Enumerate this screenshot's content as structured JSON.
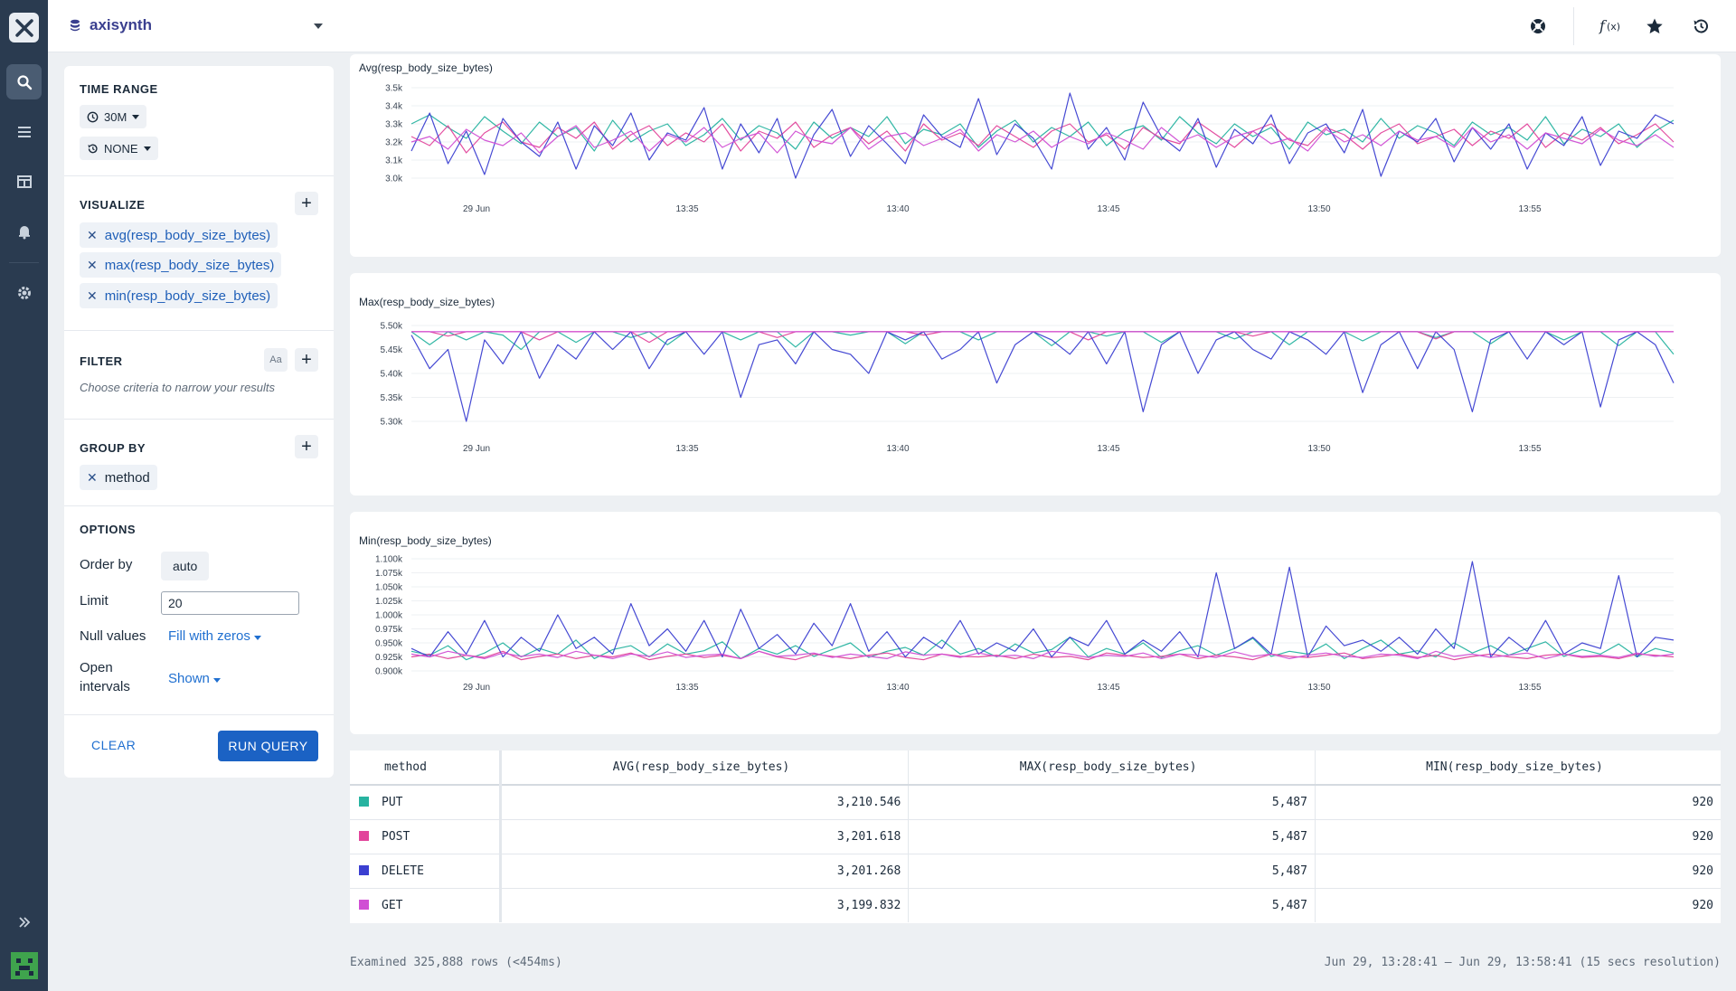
{
  "app": {
    "dataset_name": "axisynth"
  },
  "nav": {
    "items": [
      "search",
      "list",
      "dashboards",
      "alerts",
      "settings"
    ]
  },
  "topbar": {
    "icons": [
      "help-icon",
      "function-icon",
      "star-icon",
      "history-icon"
    ]
  },
  "query": {
    "time_range_title": "TIME RANGE",
    "time_range": "30M",
    "compare": "NONE",
    "visualize_title": "VISUALIZE",
    "visualize": [
      "avg(resp_body_size_bytes)",
      "max(resp_body_size_bytes)",
      "min(resp_body_size_bytes)"
    ],
    "filter_title": "FILTER",
    "filter_case_label": "Aa",
    "filter_hint": "Choose criteria to narrow your results",
    "group_by_title": "GROUP BY",
    "group_by": [
      "method"
    ],
    "options_title": "OPTIONS",
    "order_by_label": "Order by",
    "order_by_value": "auto",
    "limit_label": "Limit",
    "limit_value": "20",
    "null_values_label": "Null values",
    "null_values_value": "Fill with zeros",
    "open_intervals_label_1": "Open",
    "open_intervals_label_2": "intervals",
    "open_intervals_value": "Shown",
    "clear_label": "CLEAR",
    "run_label": "RUN QUERY"
  },
  "colors": {
    "PUT": "#27b3a0",
    "POST": "#e2459b",
    "DELETE": "#3b3fd1",
    "GET": "#d04fd4"
  },
  "chart_data": [
    {
      "type": "line",
      "title": "Avg(resp_body_size_bytes)",
      "x_ticks": [
        "29 Jun",
        "13:35",
        "13:40",
        "13:45",
        "13:50",
        "13:55"
      ],
      "y_ticks": [
        "3.5k",
        "3.4k",
        "3.3k",
        "3.2k",
        "3.1k",
        "3.0k"
      ],
      "ylim": [
        3000,
        3500
      ],
      "series": [
        {
          "name": "PUT",
          "values": [
            3300,
            3350,
            3280,
            3220,
            3340,
            3260,
            3190,
            3310,
            3230,
            3280,
            3150,
            3320,
            3200,
            3260,
            3300,
            3180,
            3240,
            3330,
            3210,
            3290,
            3250,
            3160,
            3310,
            3220,
            3280,
            3230,
            3340,
            3190,
            3270,
            3240,
            3300,
            3170,
            3260,
            3320,
            3200,
            3280,
            3230,
            3310,
            3180,
            3260,
            3290,
            3210,
            3340,
            3250,
            3190,
            3300,
            3230,
            3280,
            3160,
            3310,
            3240,
            3270,
            3200,
            3330,
            3220,
            3290,
            3250,
            3180,
            3310,
            3240,
            3280,
            3210,
            3340,
            3190,
            3270,
            3230,
            3300,
            3170,
            3260,
            3320
          ]
        },
        {
          "name": "POST",
          "values": [
            3230,
            3180,
            3290,
            3140,
            3250,
            3310,
            3200,
            3170,
            3280,
            3220,
            3310,
            3160,
            3240,
            3290,
            3180,
            3250,
            3200,
            3300,
            3150,
            3260,
            3220,
            3310,
            3170,
            3240,
            3280,
            3190,
            3260,
            3150,
            3300,
            3210,
            3250,
            3180,
            3290,
            3230,
            3170,
            3260,
            3300,
            3200,
            3240,
            3160,
            3280,
            3220,
            3190,
            3310,
            3240,
            3170,
            3260,
            3300,
            3210,
            3180,
            3280,
            3240,
            3160,
            3250,
            3300,
            3190,
            3230,
            3270,
            3180,
            3260,
            3220,
            3300,
            3170,
            3250,
            3210,
            3280,
            3190,
            3240,
            3300,
            3200
          ]
        },
        {
          "name": "DELETE",
          "values": [
            3150,
            3360,
            3080,
            3260,
            3020,
            3330,
            3200,
            3120,
            3310,
            3050,
            3290,
            3180,
            3360,
            3100,
            3250,
            3210,
            3390,
            3050,
            3300,
            3140,
            3330,
            3000,
            3240,
            3380,
            3120,
            3290,
            3190,
            3080,
            3350,
            3230,
            3170,
            3440,
            3130,
            3300,
            3220,
            3050,
            3470,
            3160,
            3280,
            3100,
            3420,
            3230,
            3150,
            3330,
            3060,
            3270,
            3190,
            3350,
            3080,
            3250,
            3300,
            3140,
            3380,
            3010,
            3260,
            3200,
            3330,
            3090,
            3280,
            3160,
            3300,
            3050,
            3250,
            3180,
            3340,
            3070,
            3260,
            3220,
            3350,
            3300
          ]
        },
        {
          "name": "GET",
          "values": [
            3200,
            3230,
            3160,
            3270,
            3210,
            3180,
            3250,
            3140,
            3230,
            3290,
            3170,
            3210,
            3260,
            3150,
            3240,
            3200,
            3280,
            3170,
            3220,
            3250,
            3140,
            3260,
            3210,
            3190,
            3280,
            3160,
            3230,
            3250,
            3180,
            3220,
            3270,
            3150,
            3240,
            3200,
            3260,
            3170,
            3230,
            3190,
            3250,
            3210,
            3160,
            3280,
            3200,
            3240,
            3170,
            3230,
            3260,
            3190,
            3220,
            3150,
            3270,
            3200,
            3240,
            3180,
            3260,
            3210,
            3230,
            3170,
            3280,
            3200,
            3240,
            3160,
            3250,
            3220,
            3190,
            3270,
            3210,
            3180,
            3240,
            3170
          ]
        }
      ]
    },
    {
      "type": "line",
      "title": "Max(resp_body_size_bytes)",
      "x_ticks": [
        "29 Jun",
        "13:35",
        "13:40",
        "13:45",
        "13:50",
        "13:55"
      ],
      "y_ticks": [
        "5.50k",
        "5.45k",
        "5.40k",
        "5.35k",
        "5.30k"
      ],
      "ylim": [
        5300,
        5500
      ],
      "series": [
        {
          "name": "PUT",
          "values": [
            5487,
            5460,
            5487,
            5470,
            5487,
            5480,
            5450,
            5487,
            5487,
            5465,
            5487,
            5487,
            5475,
            5487,
            5460,
            5487,
            5487,
            5487,
            5470,
            5487,
            5487,
            5455,
            5487,
            5487,
            5480,
            5487,
            5487,
            5462,
            5487,
            5487,
            5487,
            5470,
            5487,
            5487,
            5487,
            5458,
            5487,
            5487,
            5478,
            5487,
            5487,
            5465,
            5487,
            5487,
            5487,
            5472,
            5487,
            5487,
            5460,
            5487,
            5487,
            5487,
            5468,
            5487,
            5487,
            5487,
            5475,
            5487,
            5487,
            5462,
            5487,
            5487,
            5487,
            5470,
            5487,
            5487,
            5458,
            5487,
            5487,
            5440
          ]
        },
        {
          "name": "POST",
          "values": [
            5487,
            5487,
            5478,
            5487,
            5487,
            5487,
            5487,
            5470,
            5487,
            5487,
            5487,
            5487,
            5487,
            5465,
            5487,
            5487,
            5487,
            5487,
            5487,
            5487,
            5475,
            5487,
            5487,
            5487,
            5487,
            5487,
            5487,
            5487,
            5480,
            5487,
            5487,
            5487,
            5487,
            5487,
            5487,
            5487,
            5487,
            5470,
            5487,
            5487,
            5487,
            5487,
            5487,
            5487,
            5487,
            5487,
            5478,
            5487,
            5487,
            5487,
            5487,
            5487,
            5487,
            5487,
            5487,
            5487,
            5472,
            5487,
            5487,
            5487,
            5487,
            5487,
            5487,
            5487,
            5487,
            5487,
            5487,
            5487,
            5487,
            5487
          ]
        },
        {
          "name": "DELETE",
          "values": [
            5480,
            5410,
            5450,
            5300,
            5470,
            5420,
            5487,
            5390,
            5460,
            5430,
            5487,
            5450,
            5487,
            5410,
            5470,
            5487,
            5440,
            5487,
            5350,
            5460,
            5470,
            5420,
            5487,
            5450,
            5440,
            5400,
            5487,
            5470,
            5487,
            5430,
            5450,
            5487,
            5380,
            5460,
            5487,
            5470,
            5440,
            5487,
            5420,
            5487,
            5320,
            5460,
            5487,
            5400,
            5470,
            5487,
            5450,
            5430,
            5487,
            5470,
            5440,
            5487,
            5360,
            5460,
            5487,
            5410,
            5487,
            5450,
            5320,
            5470,
            5487,
            5430,
            5487,
            5460,
            5487,
            5330,
            5470,
            5487,
            5460,
            5380
          ]
        },
        {
          "name": "GET",
          "values": [
            5487,
            5487,
            5487,
            5487,
            5487,
            5487,
            5487,
            5487,
            5487,
            5487,
            5487,
            5487,
            5487,
            5487,
            5487,
            5487,
            5487,
            5487,
            5487,
            5487,
            5487,
            5487,
            5487,
            5487,
            5487,
            5487,
            5487,
            5487,
            5487,
            5487,
            5487,
            5487,
            5487,
            5487,
            5487,
            5487,
            5487,
            5487,
            5487,
            5487,
            5487,
            5487,
            5487,
            5487,
            5487,
            5487,
            5487,
            5487,
            5487,
            5487,
            5487,
            5487,
            5487,
            5487,
            5487,
            5487,
            5487,
            5487,
            5487,
            5487,
            5487,
            5487,
            5487,
            5487,
            5487,
            5487,
            5487,
            5487,
            5487,
            5487
          ]
        }
      ]
    },
    {
      "type": "line",
      "title": "Min(resp_body_size_bytes)",
      "x_ticks": [
        "29 Jun",
        "13:35",
        "13:40",
        "13:45",
        "13:50",
        "13:55"
      ],
      "y_ticks": [
        "1.100k",
        "1.075k",
        "1.050k",
        "1.025k",
        "1.000k",
        "0.975k",
        "0.950k",
        "0.925k",
        "0.900k"
      ],
      "ylim": [
        900,
        1100
      ],
      "series": [
        {
          "name": "PUT",
          "values": [
            935,
            928,
            945,
            920,
            932,
            950,
            925,
            940,
            930,
            955,
            922,
            938,
            945,
            925,
            948,
            930,
            936,
            952,
            922,
            940,
            930,
            945,
            926,
            938,
            950,
            924,
            935,
            942,
            928,
            955,
            930,
            940,
            925,
            948,
            932,
            938,
            960,
            925,
            940,
            930,
            950,
            924,
            936,
            945,
            928,
            940,
            958,
            926,
            935,
            930,
            948,
            922,
            940,
            955,
            930,
            936,
            925,
            950,
            932,
            945,
            928,
            940,
            952,
            926,
            938,
            930,
            948,
            925,
            940,
            932
          ]
        },
        {
          "name": "POST",
          "values": [
            925,
            930,
            922,
            928,
            924,
            935,
            920,
            926,
            930,
            922,
            928,
            925,
            932,
            920,
            926,
            930,
            924,
            928,
            922,
            935,
            925,
            920,
            930,
            926,
            922,
            928,
            932,
            924,
            920,
            930,
            926,
            925,
            928,
            922,
            930,
            924,
            926,
            920,
            932,
            928,
            924,
            926,
            930,
            922,
            928,
            925,
            920,
            930,
            926,
            924,
            928,
            932,
            922,
            926,
            930,
            924,
            928,
            920,
            926,
            930,
            925,
            922,
            928,
            930,
            924,
            926,
            922,
            930,
            928,
            925
          ]
        },
        {
          "name": "DELETE",
          "values": [
            940,
            925,
            970,
            930,
            990,
            925,
            960,
            935,
            1000,
            940,
            960,
            930,
            1020,
            945,
            975,
            935,
            990,
            925,
            1010,
            940,
            965,
            930,
            985,
            945,
            1020,
            935,
            970,
            925,
            960,
            940,
            990,
            930,
            950,
            935,
            975,
            925,
            960,
            945,
            990,
            930,
            955,
            935,
            970,
            925,
            1075,
            940,
            960,
            930,
            1085,
            925,
            980,
            945,
            955,
            935,
            960,
            930,
            975,
            940,
            1095,
            925,
            960,
            935,
            990,
            930,
            950,
            940,
            1070,
            925,
            960,
            955
          ]
        },
        {
          "name": "GET",
          "values": [
            930,
            925,
            935,
            928,
            922,
            932,
            926,
            930,
            924,
            935,
            928,
            922,
            930,
            926,
            934,
            924,
            928,
            930,
            922,
            935,
            926,
            928,
            932,
            924,
            930,
            926,
            922,
            934,
            928,
            930,
            924,
            932,
            926,
            928,
            922,
            935,
            930,
            924,
            928,
            926,
            932,
            922,
            930,
            928,
            924,
            934,
            926,
            930,
            922,
            928,
            932,
            926,
            924,
            930,
            928,
            922,
            935,
            926,
            930,
            924,
            928,
            932,
            922,
            930,
            926,
            928,
            924,
            932,
            926,
            930
          ]
        }
      ]
    }
  ],
  "table": {
    "headers": [
      "method",
      "AVG(resp_body_size_bytes)",
      "MAX(resp_body_size_bytes)",
      "MIN(resp_body_size_bytes)"
    ],
    "rows": [
      {
        "method": "PUT",
        "color": "#27b3a0",
        "avg": "3,210.546",
        "max": "5,487",
        "min": "920"
      },
      {
        "method": "POST",
        "color": "#e2459b",
        "avg": "3,201.618",
        "max": "5,487",
        "min": "920"
      },
      {
        "method": "DELETE",
        "color": "#3b3fd1",
        "avg": "3,201.268",
        "max": "5,487",
        "min": "920"
      },
      {
        "method": "GET",
        "color": "#d04fd4",
        "avg": "3,199.832",
        "max": "5,487",
        "min": "920"
      }
    ]
  },
  "footer": {
    "examined": "Examined 325,888 rows (<454ms)",
    "range": "Jun 29, 13:28:41 — Jun 29, 13:58:41 (15 secs resolution)"
  }
}
